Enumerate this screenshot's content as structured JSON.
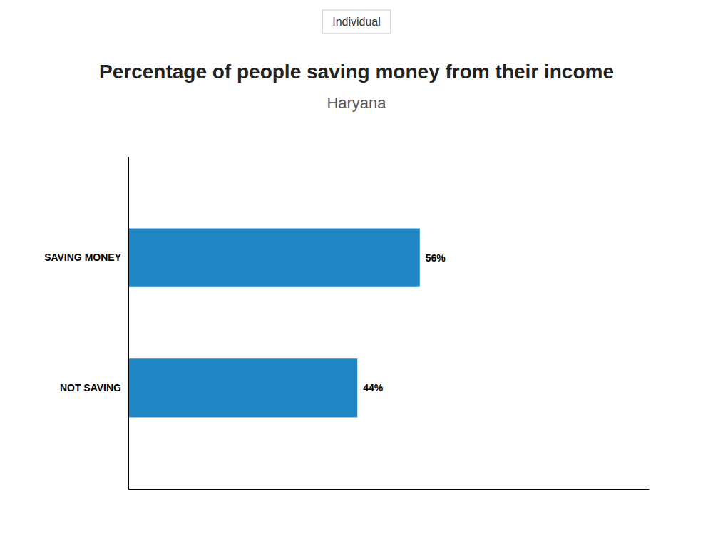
{
  "chart_data": {
    "type": "bar",
    "orientation": "horizontal",
    "title": "Percentage of people saving money from their income",
    "subtitle": "Haryana",
    "annotations": [
      "Individual"
    ],
    "categories": [
      "SAVING MONEY",
      "NOT SAVING"
    ],
    "values": [
      56,
      44
    ],
    "value_labels": [
      "56%",
      "44%"
    ],
    "data_labels": true,
    "color": "#2186C4",
    "xlim": [
      0,
      100
    ],
    "tick_labels": "y",
    "grid": false
  }
}
